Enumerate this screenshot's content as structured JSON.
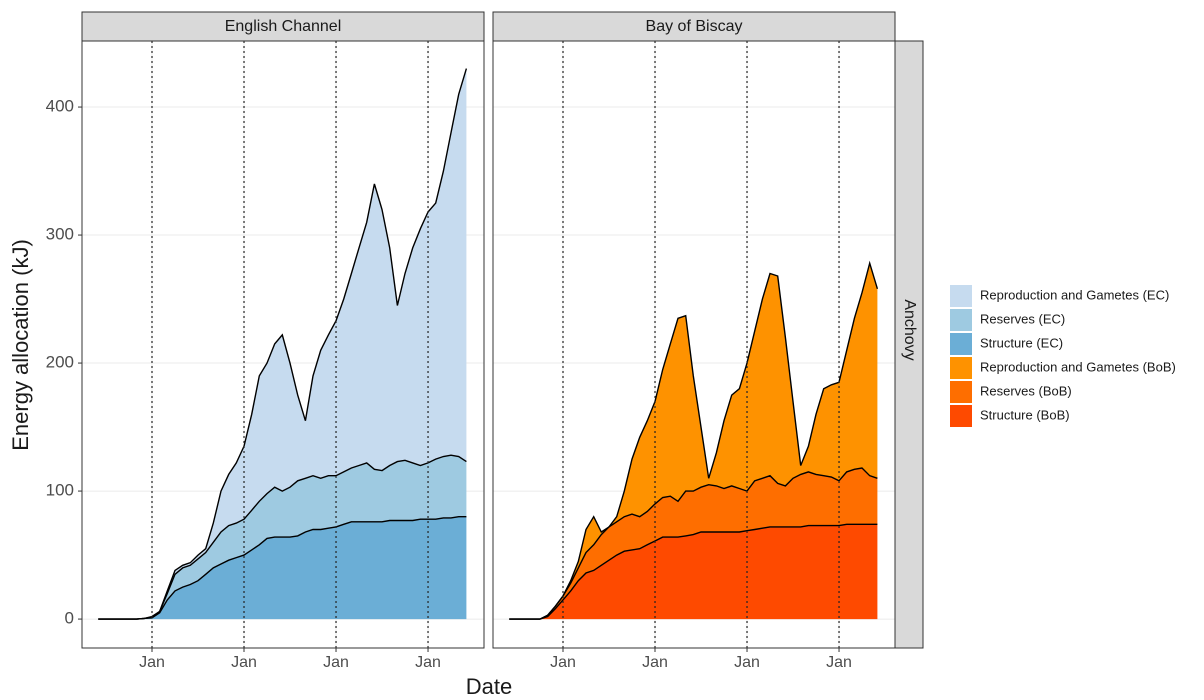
{
  "y_label": "Energy allocation (kJ)",
  "x_label": "Date",
  "row_label": "Anchovy",
  "chart_data": [
    {
      "type": "area",
      "stacked": true,
      "title": "English Channel",
      "x": [
        -7,
        -6,
        -5,
        -4,
        -3,
        -2,
        -1,
        0,
        1,
        2,
        3,
        4,
        5,
        6,
        7,
        8,
        9,
        10,
        11,
        12,
        13,
        14,
        15,
        16,
        17,
        18,
        19,
        20,
        21,
        22,
        23,
        24,
        25,
        26,
        27,
        28,
        29,
        30,
        31,
        32,
        33,
        34,
        35,
        36,
        37,
        38,
        39,
        40,
        41
      ],
      "xlim": [
        -9.13,
        43.3
      ],
      "xticks": [
        {
          "value": 0,
          "label": "Jan"
        },
        {
          "value": 12,
          "label": "Jan"
        },
        {
          "value": 24,
          "label": "Jan"
        },
        {
          "value": 36,
          "label": "Jan"
        }
      ],
      "ylim": [
        -22.6,
        451.6
      ],
      "yticks": [
        0,
        100,
        200,
        300,
        400
      ],
      "grid": true,
      "series": [
        {
          "name": "Reproduction and Gametes (EC)",
          "color": "#c6dbef",
          "values": [
            0,
            0,
            0,
            0,
            0,
            0,
            0,
            0.5,
            0,
            2,
            3,
            2,
            2,
            3,
            3,
            15,
            32,
            40,
            47,
            57,
            75,
            98,
            102,
            112,
            122,
            97,
            67,
            45,
            78,
            100,
            110,
            121,
            135,
            152,
            170,
            188,
            223,
            204,
            170,
            122,
            146,
            168,
            185,
            196,
            200,
            223,
            252,
            283,
            307
          ]
        },
        {
          "name": "Reserves (EC)",
          "color": "#9ecae1",
          "values": [
            0,
            0,
            0,
            0,
            0,
            0,
            0,
            0.5,
            1,
            5,
            13,
            15,
            15,
            17,
            17,
            20,
            25,
            27,
            27,
            28,
            31,
            34,
            35,
            39,
            36,
            39,
            43,
            42,
            42,
            40,
            41,
            40,
            41,
            42,
            44,
            46,
            41,
            40,
            43,
            46,
            47,
            45,
            42,
            44,
            47,
            48,
            49,
            47,
            43
          ]
        },
        {
          "name": "Structure (EC)",
          "color": "#6baed6",
          "values": [
            0,
            0,
            0,
            0,
            0,
            0,
            0.5,
            1,
            5,
            15,
            22,
            25,
            27,
            30,
            35,
            40,
            43,
            46,
            48,
            50,
            54,
            58,
            63,
            64,
            64,
            64,
            65,
            68,
            70,
            70,
            71,
            72,
            74,
            76,
            76,
            76,
            76,
            76,
            77,
            77,
            77,
            77,
            78,
            78,
            78,
            79,
            79,
            80,
            80
          ]
        }
      ]
    },
    {
      "type": "area",
      "stacked": true,
      "title": "Bay of Biscay",
      "x": [
        -7,
        -6,
        -5,
        -4,
        -3,
        -2,
        -1,
        0,
        1,
        2,
        3,
        4,
        5,
        6,
        7,
        8,
        9,
        10,
        11,
        12,
        13,
        14,
        15,
        16,
        17,
        18,
        19,
        20,
        21,
        22,
        23,
        24,
        25,
        26,
        27,
        28,
        29,
        30,
        31,
        32,
        33,
        34,
        35,
        36,
        37,
        38,
        39,
        40,
        41
      ],
      "xlim": [
        -9.13,
        43.3
      ],
      "xticks": [
        {
          "value": 0,
          "label": "Jan"
        },
        {
          "value": 12,
          "label": "Jan"
        },
        {
          "value": 24,
          "label": "Jan"
        },
        {
          "value": 36,
          "label": "Jan"
        }
      ],
      "ylim": [
        -22.6,
        451.6
      ],
      "yticks": [
        0,
        100,
        200,
        300,
        400
      ],
      "grid": true,
      "series": [
        {
          "name": "Reproduction and Gametes (BoB)",
          "color": "#fe9200",
          "values": [
            0,
            0,
            0,
            0,
            0,
            0,
            0,
            0,
            2,
            5,
            18,
            22,
            2,
            0,
            4,
            20,
            43,
            62,
            71,
            80,
            100,
            119,
            143,
            137,
            90,
            47,
            5,
            26,
            53,
            71,
            78,
            100,
            117,
            140,
            158,
            162,
            116,
            60,
            7,
            20,
            47,
            68,
            72,
            77,
            95,
            118,
            137,
            166,
            148
          ]
        },
        {
          "name": "Reserves (BoB)",
          "color": "#fe6e00",
          "values": [
            0,
            0,
            0,
            0,
            0,
            1,
            2,
            3,
            6,
            10,
            16,
            20,
            24,
            26,
            26,
            27,
            28,
            25,
            26,
            29,
            31,
            32,
            28,
            35,
            34,
            35,
            37,
            36,
            34,
            36,
            34,
            31,
            38,
            39,
            40,
            34,
            32,
            38,
            41,
            42,
            40,
            39,
            38,
            35,
            41,
            43,
            44,
            38,
            36
          ]
        },
        {
          "name": "Structure (BoB)",
          "color": "#fe4a00",
          "values": [
            0,
            0,
            0,
            0,
            0,
            2,
            8,
            15,
            22,
            30,
            36,
            38,
            42,
            46,
            50,
            53,
            54,
            55,
            58,
            61,
            64,
            64,
            64,
            65,
            66,
            68,
            68,
            68,
            68,
            68,
            68,
            69,
            70,
            71,
            72,
            72,
            72,
            72,
            72,
            73,
            73,
            73,
            73,
            73,
            74,
            74,
            74,
            74,
            74
          ]
        }
      ]
    }
  ]
}
